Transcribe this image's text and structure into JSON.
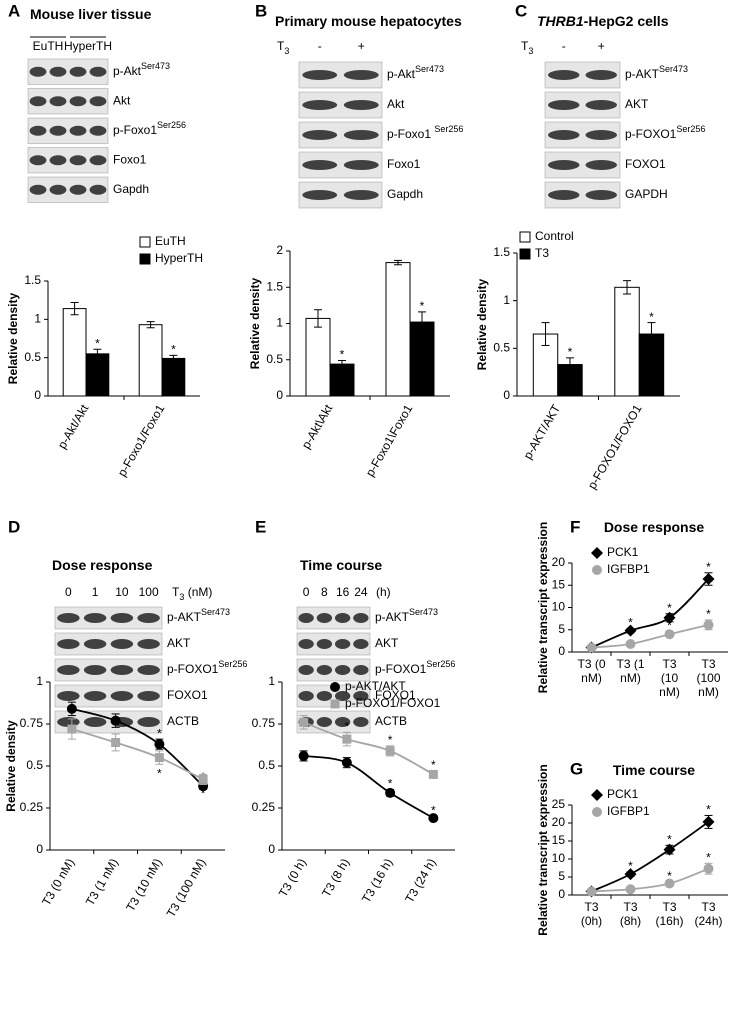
{
  "chart_data": [
    {
      "panel": "A",
      "type": "bar",
      "title": "Mouse liver tissue",
      "lanes": [
        "EuTH",
        "HyperTH"
      ],
      "blots": [
        {
          "label": "p-Akt",
          "sup": "Ser473"
        },
        {
          "label": "Akt"
        },
        {
          "label": "p-Foxo1",
          "sup": "Ser256"
        },
        {
          "label": "Foxo1"
        },
        {
          "label": "Gapdh"
        }
      ],
      "ylabel": "Relative density",
      "ylim": [
        0,
        1.5
      ],
      "yticks": [
        0,
        0.5,
        1,
        1.5
      ],
      "categories": [
        "p-Akt/Akt",
        "p-Foxo1/Foxo1"
      ],
      "series": [
        {
          "name": "EuTH",
          "color": "#ffffff",
          "values": [
            1.14,
            0.93
          ],
          "errors": [
            0.08,
            0.04
          ],
          "stars": [
            null,
            null
          ]
        },
        {
          "name": "HyperTH",
          "color": "#000000",
          "values": [
            0.55,
            0.49
          ],
          "errors": [
            0.06,
            0.04
          ],
          "stars": [
            "*",
            "*"
          ]
        }
      ]
    },
    {
      "panel": "B",
      "type": "bar",
      "title": "Primary mouse hepatocytes",
      "lane_title": {
        "text": "T",
        "sub": "3"
      },
      "lanes": [
        "-",
        "+"
      ],
      "blots": [
        {
          "label": "p-Akt",
          "sup": "Ser473"
        },
        {
          "label": "Akt"
        },
        {
          "label": "p-Foxo1 ",
          "sup": "Ser256"
        },
        {
          "label": "Foxo1"
        },
        {
          "label": "Gapdh"
        }
      ],
      "ylabel": "Relative density",
      "ylim": [
        0,
        2
      ],
      "yticks": [
        0,
        0.5,
        1,
        1.5,
        2
      ],
      "categories": [
        "p-Akt\\Akt",
        "p-Foxo1\\Foxo1"
      ],
      "series": [
        {
          "color": "#ffffff",
          "values": [
            1.07,
            1.84
          ],
          "errors": [
            0.12,
            0.03
          ],
          "stars": [
            null,
            null
          ]
        },
        {
          "color": "#000000",
          "values": [
            0.44,
            1.02
          ],
          "errors": [
            0.05,
            0.14
          ],
          "stars": [
            "*",
            "*"
          ]
        }
      ]
    },
    {
      "panel": "C",
      "type": "bar",
      "title_italic": "THRB1",
      "title": "-HepG2 cells",
      "lane_title": {
        "text": "T",
        "sub": "3"
      },
      "lanes": [
        "-",
        "+"
      ],
      "blots": [
        {
          "label": "p-AKT",
          "sup": "Ser473"
        },
        {
          "label": "AKT"
        },
        {
          "label": "p-FOXO1",
          "sup": "Ser256"
        },
        {
          "label": "FOXO1"
        },
        {
          "label": "GAPDH"
        }
      ],
      "ylabel": "Relative density",
      "ylim": [
        0,
        1.5
      ],
      "yticks": [
        0,
        0.5,
        1,
        1.5
      ],
      "categories": [
        "p-AKT/AKT",
        "p-FOXO1/FOXO1"
      ],
      "series": [
        {
          "name": "Control",
          "color": "#ffffff",
          "values": [
            0.65,
            1.14
          ],
          "errors": [
            0.12,
            0.07
          ],
          "stars": [
            null,
            null
          ]
        },
        {
          "name": "T3",
          "color": "#000000",
          "values": [
            0.33,
            0.65
          ],
          "errors": [
            0.07,
            0.12
          ],
          "stars": [
            "*",
            "*"
          ]
        }
      ]
    },
    {
      "panel": "D",
      "type": "line",
      "title": "Dose response",
      "lane_title": {
        "text": "T",
        "sub": "3",
        "after": " (nM)"
      },
      "lanes": [
        "0",
        "1",
        "10",
        "100"
      ],
      "blots": [
        {
          "label": "p-AKT",
          "sup": "Ser473"
        },
        {
          "label": "AKT"
        },
        {
          "label": "p-FOXO1",
          "sup": "Ser256"
        },
        {
          "label": "FOXO1"
        },
        {
          "label": "ACTB"
        }
      ],
      "ylabel": "Relative density",
      "ylim": [
        0,
        1
      ],
      "yticks": [
        0,
        0.25,
        0.5,
        0.75,
        1
      ],
      "categories": [
        "T3 (0 nM)",
        "T3 (1 nM)",
        "T3 (10 nM)",
        "T3 (100 nM)"
      ],
      "series": [
        {
          "color": "#000000",
          "marker": "circle",
          "values": [
            0.84,
            0.77,
            0.63,
            0.38
          ],
          "errors": [
            0.04,
            0.04,
            0.03,
            0.02
          ],
          "stars": [
            null,
            null,
            "*",
            "*"
          ]
        },
        {
          "color": "#a6a6a6",
          "marker": "square",
          "values": [
            0.72,
            0.64,
            0.55,
            0.42
          ],
          "errors": [
            0.06,
            0.05,
            0.04,
            0.03
          ],
          "stars": [
            null,
            null,
            "*",
            "*"
          ]
        }
      ]
    },
    {
      "panel": "E",
      "type": "line",
      "title": "Time course",
      "lane_title": {
        "text": "(h)"
      },
      "lanes": [
        "0",
        "8",
        "16",
        "24"
      ],
      "blots": [
        {
          "label": "p-AKT",
          "sup": "Ser473"
        },
        {
          "label": "AKT"
        },
        {
          "label": "p-FOXO1",
          "sup": "Ser256"
        },
        {
          "label": "FOXO1"
        },
        {
          "label": "ACTB"
        }
      ],
      "ylim": [
        0,
        1
      ],
      "yticks": [
        0,
        0.25,
        0.5,
        0.75,
        1
      ],
      "categories": [
        "T3 (0 h)",
        "T3 (8 h)",
        "T3 (16 h)",
        "T3 (24 h)"
      ],
      "series": [
        {
          "name": "p-AKT/AKT",
          "color": "#000000",
          "marker": "circle",
          "values": [
            0.56,
            0.52,
            0.34,
            0.19
          ],
          "errors": [
            0.03,
            0.03,
            0.02,
            0.01
          ],
          "stars": [
            null,
            null,
            "*",
            "*"
          ]
        },
        {
          "name": "p-FOXO1/FOXO1",
          "color": "#a6a6a6",
          "marker": "square",
          "values": [
            0.76,
            0.66,
            0.59,
            0.45
          ],
          "errors": [
            0.04,
            0.04,
            0.03,
            0.02
          ],
          "stars": [
            null,
            "*",
            "*",
            "*"
          ]
        }
      ]
    },
    {
      "panel": "F",
      "type": "line",
      "title": "Dose response",
      "ylabel": "Relative transcript expression",
      "ylim": [
        0,
        20
      ],
      "yticks": [
        0,
        5,
        10,
        15,
        20
      ],
      "categories": [
        [
          "T3 (0",
          "nM)"
        ],
        [
          "T3 (1",
          "nM)"
        ],
        [
          "T3",
          "(10",
          "nM)"
        ],
        [
          "T3",
          "(100",
          "nM)"
        ]
      ],
      "series": [
        {
          "name": "PCK1",
          "color": "#000000",
          "marker": "diamond",
          "values": [
            1,
            4.8,
            7.7,
            16.4
          ],
          "errors": [
            0.2,
            0.5,
            0.9,
            1.4
          ],
          "stars": [
            null,
            "*",
            "*",
            "*"
          ]
        },
        {
          "name": "IGFBP1",
          "color": "#a6a6a6",
          "marker": "circle",
          "values": [
            1,
            1.8,
            4.0,
            6.1
          ],
          "errors": [
            0.2,
            0.3,
            0.6,
            1.1
          ],
          "stars": [
            null,
            null,
            "*",
            "*"
          ]
        }
      ]
    },
    {
      "panel": "G",
      "type": "line",
      "title": "Time course",
      "ylabel": "Relative transcript expression",
      "ylim": [
        0,
        25
      ],
      "yticks": [
        0,
        5,
        10,
        15,
        20,
        25
      ],
      "categories": [
        [
          "T3",
          "(0h)"
        ],
        [
          "T3",
          "(8h)"
        ],
        [
          "T3",
          "(16h)"
        ],
        [
          "T3",
          "(24h)"
        ]
      ],
      "series": [
        {
          "name": "PCK1",
          "color": "#000000",
          "marker": "diamond",
          "values": [
            1,
            5.8,
            12.6,
            20.3
          ],
          "errors": [
            0.2,
            0.6,
            1.2,
            1.8
          ],
          "stars": [
            null,
            "*",
            "*",
            "*"
          ]
        },
        {
          "name": "IGFBP1",
          "color": "#a6a6a6",
          "marker": "circle",
          "values": [
            1,
            1.6,
            3.2,
            7.3
          ],
          "errors": [
            0.2,
            0.2,
            0.5,
            1.5
          ],
          "stars": [
            null,
            null,
            "*",
            "*"
          ]
        }
      ]
    }
  ]
}
